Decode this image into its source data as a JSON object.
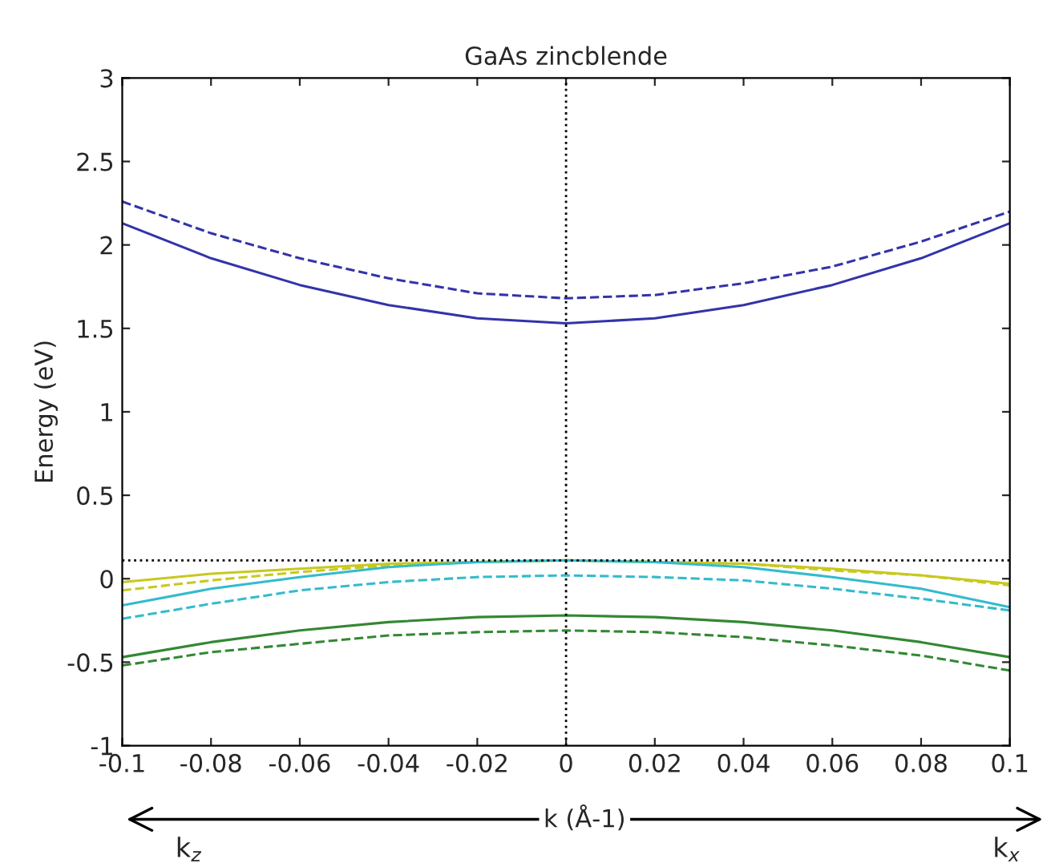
{
  "chart_data": {
    "type": "line",
    "title": "GaAs zincblende",
    "xlabel": "k (Å-1)",
    "ylabel": "Energy (eV)",
    "x": [
      -0.1,
      -0.08,
      -0.06,
      -0.04,
      -0.02,
      0,
      0.02,
      0.04,
      0.06,
      0.08,
      0.1
    ],
    "series": [
      {
        "color": "#3333aa",
        "line_style": "solid",
        "values": [
          2.13,
          1.92,
          1.76,
          1.64,
          1.56,
          1.53,
          1.56,
          1.64,
          1.76,
          1.92,
          2.13
        ]
      },
      {
        "color": "#3333aa",
        "line_style": "dashed",
        "values": [
          2.26,
          2.07,
          1.92,
          1.8,
          1.71,
          1.68,
          1.7,
          1.77,
          1.87,
          2.02,
          2.2
        ]
      },
      {
        "color": "#c8c820",
        "line_style": "solid",
        "values": [
          -0.02,
          0.03,
          0.06,
          0.09,
          0.1,
          0.11,
          0.1,
          0.09,
          0.06,
          0.02,
          -0.03
        ]
      },
      {
        "color": "#c8c820",
        "line_style": "dashed",
        "values": [
          -0.07,
          -0.01,
          0.04,
          0.08,
          0.1,
          0.11,
          0.1,
          0.09,
          0.05,
          0.02,
          -0.04
        ]
      },
      {
        "color": "#33bbcc",
        "line_style": "solid",
        "values": [
          -0.16,
          -0.06,
          0.01,
          0.07,
          0.1,
          0.11,
          0.1,
          0.07,
          0.01,
          -0.06,
          -0.17
        ]
      },
      {
        "color": "#33bbcc",
        "line_style": "dashed",
        "values": [
          -0.24,
          -0.15,
          -0.07,
          -0.02,
          0.01,
          0.02,
          0.01,
          -0.01,
          -0.06,
          -0.12,
          -0.19
        ]
      },
      {
        "color": "#338833",
        "line_style": "solid",
        "values": [
          -0.47,
          -0.38,
          -0.31,
          -0.26,
          -0.23,
          -0.22,
          -0.23,
          -0.26,
          -0.31,
          -0.38,
          -0.47
        ]
      },
      {
        "color": "#338833",
        "line_style": "dashed",
        "values": [
          -0.52,
          -0.44,
          -0.39,
          -0.34,
          -0.32,
          -0.31,
          -0.32,
          -0.35,
          -0.4,
          -0.46,
          -0.55
        ]
      }
    ],
    "ref_lines": [
      {
        "axis": "y",
        "value": 0.11,
        "line_style": "dotted",
        "color": "#000000"
      },
      {
        "axis": "x",
        "value": 0,
        "line_style": "dotted",
        "color": "#000000"
      }
    ],
    "annotations": [
      "k$_{z}$",
      "k$_{x}$"
    ],
    "xlim": [
      -0.1,
      0.1
    ],
    "xticks": [
      -0.1,
      -0.08,
      -0.06,
      -0.04,
      -0.02,
      0,
      0.02,
      0.04,
      0.06,
      0.08,
      0.1
    ],
    "ylim": [
      -1,
      3
    ],
    "yticks": [
      -1,
      -0.5,
      0,
      0.5,
      1,
      1.5,
      2,
      2.5,
      3
    ],
    "grid": false
  }
}
